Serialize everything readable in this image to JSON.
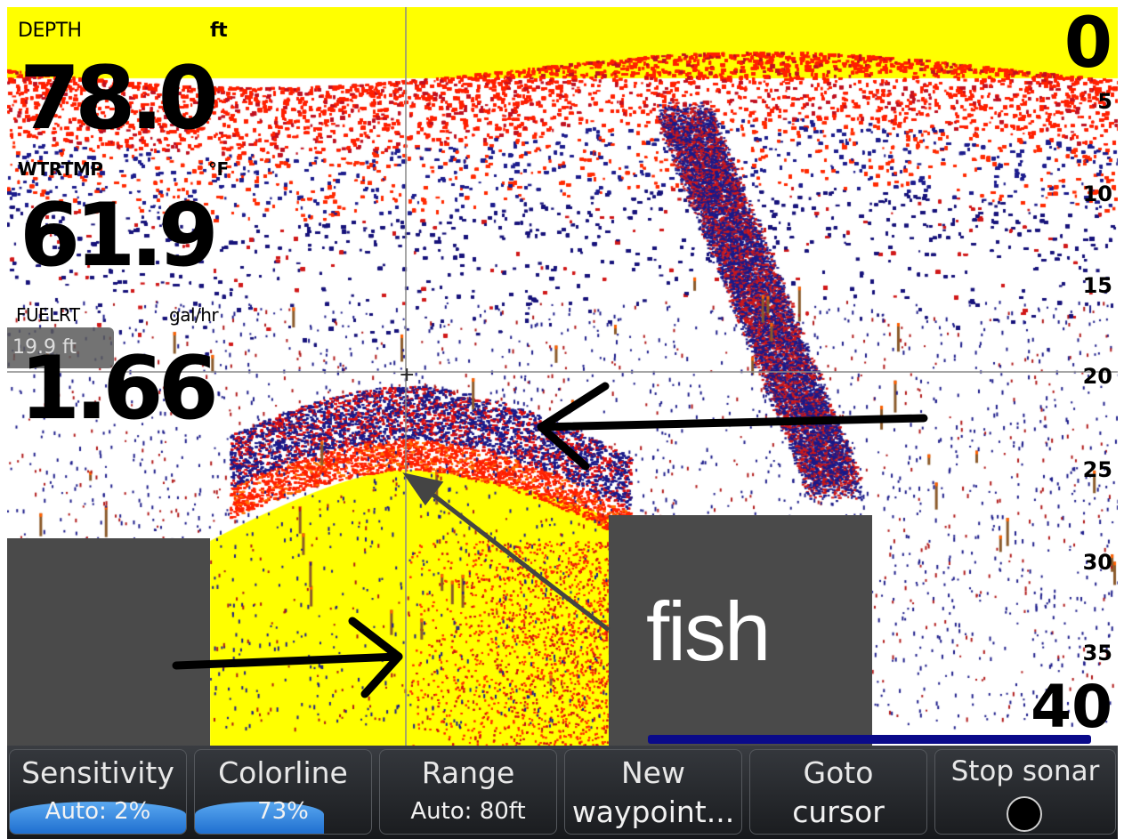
{
  "readouts": {
    "depth": {
      "label": "DEPTH",
      "unit": "ft",
      "value": "78.0"
    },
    "water_temp": {
      "label": "WTRTMP",
      "unit": "°F",
      "value": "61.9"
    },
    "fuel_rate": {
      "label": "FUELRT",
      "unit": "gal/hr",
      "value": "1.66"
    }
  },
  "cursor_depth": "19.9 ft",
  "depth_scale": {
    "top": "0",
    "ticks": [
      "5",
      "10",
      "15",
      "20",
      "25",
      "30",
      "35"
    ],
    "bottom": "40"
  },
  "annotation": {
    "label": "fish"
  },
  "softkeys": [
    {
      "title": "Sensitivity",
      "value": "Auto: 2%",
      "fill": 0.02
    },
    {
      "title": "Colorline",
      "value": "73%",
      "fill": 0.73
    },
    {
      "title": "Range",
      "value": "Auto: 80ft"
    },
    {
      "title": "New",
      "value": "waypoint..."
    },
    {
      "title": "Goto",
      "value": "cursor"
    },
    {
      "title": "Stop sonar",
      "value": ""
    }
  ],
  "colors": {
    "surface": "#ffff00",
    "strong_return": "#ff2000",
    "weak_return": "#20208a",
    "panel": "#4a4a4a"
  }
}
